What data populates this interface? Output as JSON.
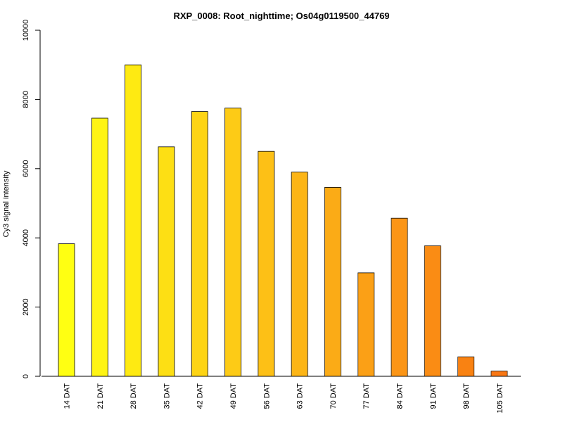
{
  "chart_data": {
    "type": "bar",
    "title": "RXP_0008: Root_nighttime; Os04g0119500_44769",
    "xlabel": "",
    "ylabel": "Cy3 signal intensity",
    "ylim": [
      0,
      10000
    ],
    "yticks": [
      0,
      2000,
      4000,
      6000,
      8000,
      10000
    ],
    "categories": [
      "14 DAT",
      "21 DAT",
      "28 DAT",
      "35 DAT",
      "42 DAT",
      "49 DAT",
      "56 DAT",
      "63 DAT",
      "70 DAT",
      "77 DAT",
      "84 DAT",
      "91 DAT",
      "98 DAT",
      "105 DAT"
    ],
    "values": [
      3830,
      7460,
      9000,
      6630,
      7650,
      7750,
      6500,
      5900,
      5460,
      2990,
      4570,
      3770,
      560,
      150
    ],
    "colors": [
      "#FFFF12",
      "#FEF414",
      "#FEEA12",
      "#FDDF14",
      "#FDD414",
      "#FDCB16",
      "#FDC016",
      "#FCB516",
      "#FBAB16",
      "#FBA016",
      "#FB9516",
      "#FA8C14",
      "#F98212",
      "#F97714"
    ],
    "grid": false,
    "legend": "none"
  }
}
